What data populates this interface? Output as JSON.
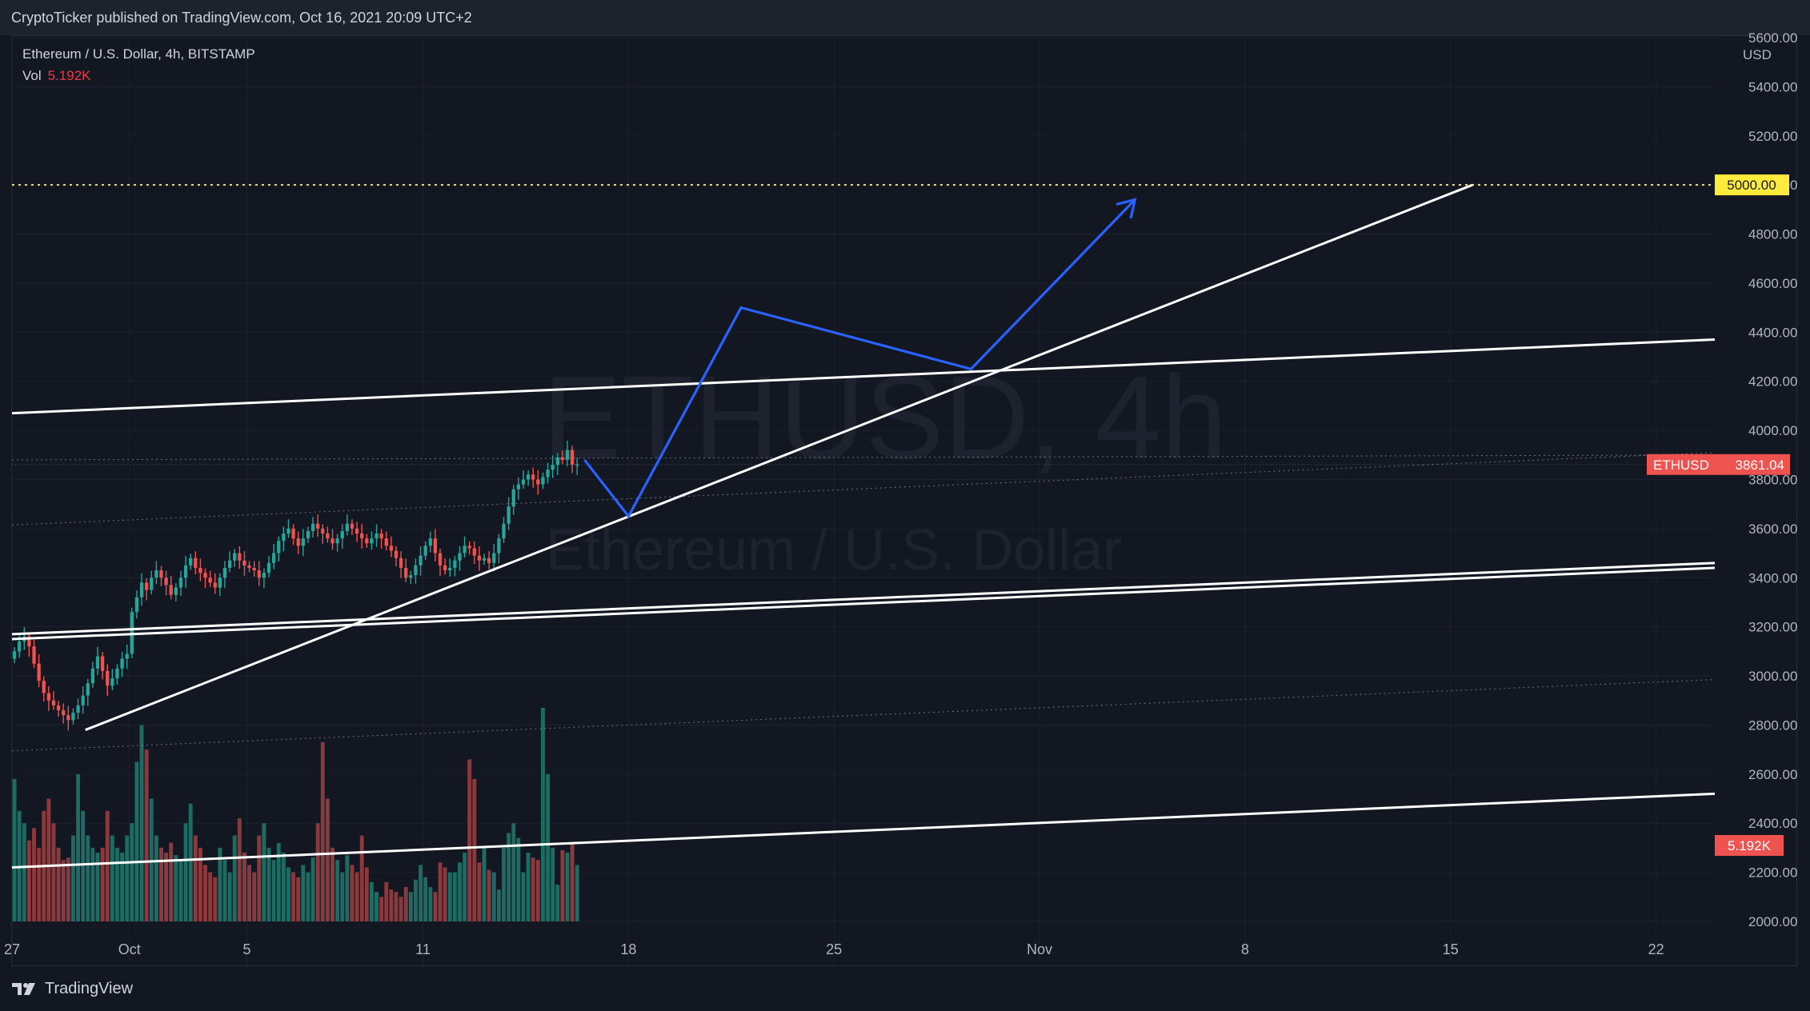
{
  "header": {
    "published": "CryptoTicker published on TradingView.com, Oct 16, 2021 20:09 UTC+2"
  },
  "legend": {
    "symbol": "Ethereum / U.S. Dollar, 4h, BITSTAMP",
    "vol_label": "Vol",
    "vol_value": "5.192K"
  },
  "watermark": {
    "ticker": "ETHUSD, 4h",
    "name": "Ethereum / U.S. Dollar"
  },
  "footer": {
    "brand": "TradingView"
  },
  "colors": {
    "background": "#131722",
    "up": "#26a69a",
    "down": "#ef5350",
    "vol_up": "#1d6b63",
    "vol_down": "#8a3a3c",
    "projection": "#2962ff",
    "target": "#ffeb3b",
    "trendline": "#ffffff",
    "grid": "#1c2030"
  },
  "chart_data": {
    "type": "candlestick",
    "symbol": "ETHUSD",
    "interval": "4h",
    "exchange": "BITSTAMP",
    "currency": "USD",
    "y_range": [
      2000,
      5600
    ],
    "y_ticks": [
      2000,
      2200,
      2400,
      2600,
      2800,
      3000,
      3200,
      3400,
      3600,
      3800,
      4000,
      4200,
      4400,
      4600,
      4800,
      5000,
      5200,
      5400,
      5600
    ],
    "x_range": [
      "2021-09-27",
      "2021-11-24"
    ],
    "x_ticks": [
      {
        "date": "2021-09-27",
        "label": "27"
      },
      {
        "date": "2021-10-01",
        "label": "Oct"
      },
      {
        "date": "2021-10-05",
        "label": "5"
      },
      {
        "date": "2021-10-11",
        "label": "11"
      },
      {
        "date": "2021-10-18",
        "label": "18"
      },
      {
        "date": "2021-10-25",
        "label": "25"
      },
      {
        "date": "2021-11-01",
        "label": "Nov"
      },
      {
        "date": "2021-11-08",
        "label": "8"
      },
      {
        "date": "2021-11-15",
        "label": "15"
      },
      {
        "date": "2021-11-22",
        "label": "22"
      }
    ],
    "series_start": "2021-09-27T00:00",
    "bar_hours": 4,
    "close_path": [
      3100,
      3140,
      3160,
      3120,
      3050,
      2980,
      2930,
      2900,
      2880,
      2860,
      2840,
      2820,
      2850,
      2880,
      2920,
      2970,
      3030,
      3080,
      3020,
      2960,
      2990,
      3030,
      3070,
      3090,
      3260,
      3320,
      3380,
      3350,
      3400,
      3430,
      3400,
      3370,
      3330,
      3360,
      3400,
      3450,
      3480,
      3440,
      3420,
      3400,
      3380,
      3360,
      3400,
      3440,
      3470,
      3500,
      3470,
      3450,
      3440,
      3430,
      3400,
      3420,
      3460,
      3500,
      3550,
      3580,
      3600,
      3560,
      3530,
      3560,
      3590,
      3620,
      3600,
      3580,
      3560,
      3540,
      3560,
      3590,
      3620,
      3600,
      3580,
      3560,
      3540,
      3560,
      3580,
      3560,
      3530,
      3510,
      3480,
      3440,
      3400,
      3410,
      3450,
      3490,
      3530,
      3560,
      3500,
      3450,
      3430,
      3440,
      3470,
      3500,
      3530,
      3520,
      3490,
      3470,
      3480,
      3460,
      3500,
      3560,
      3620,
      3690,
      3760,
      3780,
      3800,
      3820,
      3800,
      3780,
      3810,
      3840,
      3860,
      3890,
      3880,
      3920,
      3860,
      3861.04
    ],
    "volume_path": [
      2580,
      2450,
      2400,
      2330,
      2380,
      2300,
      2450,
      2500,
      2400,
      2300,
      2250,
      2260,
      2350,
      2600,
      2450,
      2350,
      2300,
      2280,
      2300,
      2450,
      2350,
      2300,
      2280,
      2350,
      2400,
      2650,
      2800,
      2700,
      2500,
      2350,
      2300,
      2280,
      2320,
      2270,
      2250,
      2400,
      2480,
      2350,
      2300,
      2230,
      2200,
      2180,
      2300,
      2250,
      2200,
      2350,
      2420,
      2280,
      2230,
      2200,
      2350,
      2400,
      2300,
      2250,
      2320,
      2280,
      2220,
      2200,
      2180,
      2230,
      2200,
      2260,
      2400,
      2730,
      2500,
      2300,
      2250,
      2200,
      2270,
      2230,
      2200,
      2350,
      2220,
      2160,
      2120,
      2100,
      2160,
      2130,
      2120,
      2100,
      2140,
      2120,
      2170,
      2230,
      2180,
      2140,
      2120,
      2240,
      2220,
      2200,
      2200,
      2240,
      2280,
      2660,
      2580,
      2240,
      2300,
      2210,
      2200,
      2130,
      2300,
      2360,
      2400,
      2340,
      2200,
      2280,
      2260,
      2250,
      2870,
      2600,
      2300,
      2150,
      2290,
      2280,
      2320,
      2230
    ],
    "last_price": "3861.04",
    "last_volume": "5.192K",
    "price_label": "ETHUSD",
    "target_price": "5000.00",
    "annotations": {
      "target_line": 5000,
      "parallel_lines": [
        {
          "name": "upper-channel",
          "from": [
            "2021-09-27",
            4070
          ],
          "to": [
            "2021-11-24",
            4370
          ]
        },
        {
          "name": "mid-channel-a",
          "from": [
            "2021-09-27",
            3170
          ],
          "to": [
            "2021-11-24",
            3460
          ]
        },
        {
          "name": "mid-channel-b",
          "from": [
            "2021-09-27",
            3150
          ],
          "to": [
            "2021-11-24",
            3440
          ]
        },
        {
          "name": "lower-channel",
          "from": [
            "2021-09-27",
            2220
          ],
          "to": [
            "2021-11-24",
            2520
          ]
        }
      ],
      "dotted_lines": [
        {
          "from": [
            "2021-09-27",
            3880
          ],
          "to": [
            "2021-11-24",
            3900
          ]
        },
        {
          "from": [
            "2021-09-27",
            3615
          ],
          "to": [
            "2021-11-24",
            3910
          ]
        },
        {
          "from": [
            "2021-09-27",
            2695
          ],
          "to": [
            "2021-11-24",
            2985
          ]
        }
      ],
      "rising_trendline": {
        "from": [
          "2021-09-29T12:00",
          2780
        ],
        "to": [
          "2021-11-15T18:00",
          5000
        ]
      },
      "projection_path": [
        [
          "2021-10-16T12:00",
          3880
        ],
        [
          "2021-10-18T00:00",
          3650
        ],
        [
          "2021-10-21T20:00",
          4500
        ],
        [
          "2021-10-29T16:00",
          4250
        ],
        [
          "2021-11-04T06:00",
          4940
        ]
      ]
    }
  }
}
